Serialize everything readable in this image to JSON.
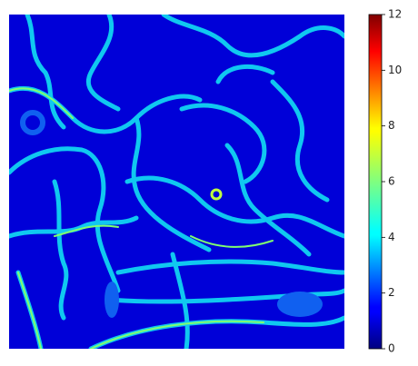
{
  "chart_data": {
    "type": "heatmap",
    "colormap": "jet",
    "clim": [
      0,
      12
    ],
    "ticks": [
      0,
      2,
      4,
      6,
      8,
      10,
      12
    ]
  }
}
